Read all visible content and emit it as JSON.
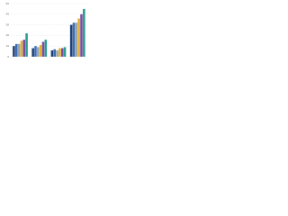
{
  "chart_data": {
    "type": "bar",
    "categories": [
      null,
      null,
      null,
      null
    ],
    "series": [
      {
        "color": "#1f3f73",
        "values": [
          10,
          8,
          6,
          30
        ]
      },
      {
        "color": "#3a6fb5",
        "values": [
          12,
          10,
          7,
          32
        ]
      },
      {
        "color": "#9aa3ab",
        "values": [
          12,
          9,
          6,
          32
        ]
      },
      {
        "color": "#e0b12c",
        "values": [
          15,
          11,
          8,
          36
        ]
      },
      {
        "color": "#7b4aa3",
        "values": [
          16,
          14,
          8,
          40
        ]
      },
      {
        "color": "#2a9d8f",
        "values": [
          22,
          16,
          9,
          45
        ]
      }
    ],
    "ylim": [
      0,
      50
    ],
    "yticks": [
      0,
      10,
      20,
      30,
      40,
      50
    ],
    "grid": true
  }
}
